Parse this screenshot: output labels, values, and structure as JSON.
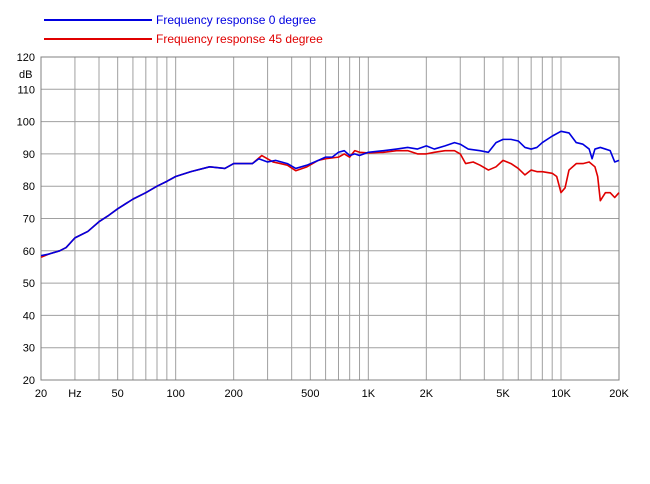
{
  "chart_data": {
    "type": "line",
    "title": "",
    "xlabel": "",
    "ylabel": "dB",
    "x_scale": "log",
    "xlim": [
      20,
      20000
    ],
    "ylim": [
      20,
      120
    ],
    "grid": true,
    "legend_position": "top-left",
    "x_ticks": [
      {
        "value": 20,
        "label": "20"
      },
      {
        "value": 30,
        "label": "Hz"
      },
      {
        "value": 50,
        "label": "50"
      },
      {
        "value": 100,
        "label": "100"
      },
      {
        "value": 200,
        "label": "200"
      },
      {
        "value": 500,
        "label": "500"
      },
      {
        "value": 1000,
        "label": "1K"
      },
      {
        "value": 2000,
        "label": "2K"
      },
      {
        "value": 5000,
        "label": "5K"
      },
      {
        "value": 10000,
        "label": "10K"
      },
      {
        "value": 20000,
        "label": "20K"
      }
    ],
    "y_ticks": [
      {
        "value": 20,
        "label": "20"
      },
      {
        "value": 30,
        "label": "30"
      },
      {
        "value": 40,
        "label": "40"
      },
      {
        "value": 50,
        "label": "50"
      },
      {
        "value": 60,
        "label": "60"
      },
      {
        "value": 70,
        "label": "70"
      },
      {
        "value": 80,
        "label": "80"
      },
      {
        "value": 90,
        "label": "90"
      },
      {
        "value": 100,
        "label": "100"
      },
      {
        "value": 110,
        "label": "110"
      },
      {
        "value": 120,
        "label": "120"
      }
    ],
    "series": [
      {
        "name": "Frequency response 0 degree",
        "color": "#0000e0",
        "points": [
          [
            20,
            58.5
          ],
          [
            22,
            59
          ],
          [
            25,
            60
          ],
          [
            27,
            61
          ],
          [
            30,
            64
          ],
          [
            35,
            66
          ],
          [
            40,
            69
          ],
          [
            45,
            71
          ],
          [
            50,
            73
          ],
          [
            60,
            76
          ],
          [
            70,
            78
          ],
          [
            80,
            80
          ],
          [
            90,
            81.5
          ],
          [
            100,
            83
          ],
          [
            120,
            84.5
          ],
          [
            150,
            86
          ],
          [
            180,
            85.5
          ],
          [
            200,
            87
          ],
          [
            250,
            87
          ],
          [
            270,
            88.5
          ],
          [
            300,
            87.5
          ],
          [
            330,
            88
          ],
          [
            380,
            87
          ],
          [
            420,
            85.5
          ],
          [
            480,
            86.5
          ],
          [
            550,
            88
          ],
          [
            600,
            89
          ],
          [
            650,
            89
          ],
          [
            700,
            90.5
          ],
          [
            750,
            91
          ],
          [
            800,
            89.5
          ],
          [
            850,
            90
          ],
          [
            900,
            89.5
          ],
          [
            1000,
            90.5
          ],
          [
            1200,
            91
          ],
          [
            1400,
            91.5
          ],
          [
            1600,
            92
          ],
          [
            1800,
            91.5
          ],
          [
            2000,
            92.5
          ],
          [
            2200,
            91.5
          ],
          [
            2500,
            92.5
          ],
          [
            2800,
            93.5
          ],
          [
            3000,
            93
          ],
          [
            3300,
            91.5
          ],
          [
            3800,
            91
          ],
          [
            4200,
            90.5
          ],
          [
            4600,
            93.5
          ],
          [
            5000,
            94.5
          ],
          [
            5500,
            94.5
          ],
          [
            6000,
            94
          ],
          [
            6500,
            92
          ],
          [
            7000,
            91.5
          ],
          [
            7500,
            92
          ],
          [
            8000,
            93.5
          ],
          [
            9000,
            95.5
          ],
          [
            10000,
            97
          ],
          [
            11000,
            96.5
          ],
          [
            12000,
            93.5
          ],
          [
            13000,
            93
          ],
          [
            14000,
            91.5
          ],
          [
            14500,
            88.5
          ],
          [
            15000,
            91.5
          ],
          [
            16000,
            92
          ],
          [
            17000,
            91.5
          ],
          [
            18000,
            91
          ],
          [
            19000,
            87.5
          ],
          [
            20000,
            88
          ]
        ]
      },
      {
        "name": "Frequency response 45 degree",
        "color": "#e00000",
        "points": [
          [
            20,
            58
          ],
          [
            22,
            59
          ],
          [
            25,
            60
          ],
          [
            27,
            61
          ],
          [
            30,
            64
          ],
          [
            35,
            66
          ],
          [
            40,
            69
          ],
          [
            45,
            71
          ],
          [
            50,
            73
          ],
          [
            60,
            76
          ],
          [
            70,
            78
          ],
          [
            80,
            80
          ],
          [
            90,
            81.5
          ],
          [
            100,
            83
          ],
          [
            120,
            84.5
          ],
          [
            150,
            86
          ],
          [
            180,
            85.5
          ],
          [
            200,
            87
          ],
          [
            250,
            87
          ],
          [
            280,
            89.5
          ],
          [
            320,
            87.5
          ],
          [
            350,
            87
          ],
          [
            380,
            86.5
          ],
          [
            420,
            84.8
          ],
          [
            480,
            86
          ],
          [
            550,
            88
          ],
          [
            600,
            88.5
          ],
          [
            700,
            89
          ],
          [
            750,
            90
          ],
          [
            800,
            89
          ],
          [
            850,
            91
          ],
          [
            900,
            90.5
          ],
          [
            1000,
            90.3
          ],
          [
            1200,
            90.5
          ],
          [
            1400,
            91
          ],
          [
            1600,
            91
          ],
          [
            1800,
            90
          ],
          [
            2000,
            90
          ],
          [
            2200,
            90.5
          ],
          [
            2500,
            91
          ],
          [
            2800,
            91
          ],
          [
            3000,
            90
          ],
          [
            3200,
            87
          ],
          [
            3500,
            87.5
          ],
          [
            3800,
            86.5
          ],
          [
            4200,
            85
          ],
          [
            4600,
            86
          ],
          [
            5000,
            88
          ],
          [
            5500,
            87
          ],
          [
            6000,
            85.5
          ],
          [
            6500,
            83.5
          ],
          [
            7000,
            85
          ],
          [
            7500,
            84.5
          ],
          [
            8000,
            84.5
          ],
          [
            9000,
            84
          ],
          [
            9500,
            83
          ],
          [
            10000,
            78
          ],
          [
            10500,
            79.5
          ],
          [
            11000,
            85
          ],
          [
            12000,
            87
          ],
          [
            13000,
            87
          ],
          [
            14000,
            87.5
          ],
          [
            15000,
            86
          ],
          [
            15500,
            83
          ],
          [
            16000,
            75.5
          ],
          [
            17000,
            78
          ],
          [
            18000,
            78
          ],
          [
            19000,
            76.5
          ],
          [
            20000,
            78
          ]
        ]
      }
    ]
  }
}
